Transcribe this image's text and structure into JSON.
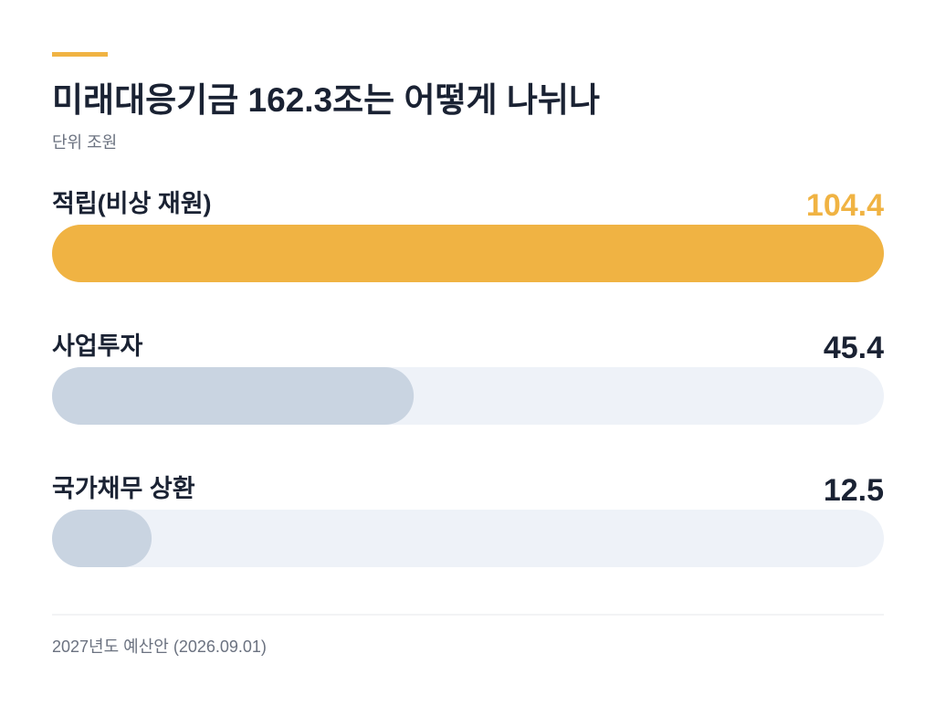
{
  "chart_data": {
    "type": "bar",
    "orientation": "horizontal",
    "title": "미래대응기금 162.3조는 어떻게 나뉘나",
    "subtitle": "단위 조원",
    "categories": [
      "적립(비상 재원)",
      "사업투자",
      "국가채무 상환"
    ],
    "values": [
      104.4,
      45.4,
      12.5
    ],
    "colors": [
      "#f0b343",
      "#c9d4e1",
      "#c9d4e1"
    ],
    "value_label_colors": [
      "#f0b343",
      "#1a2233",
      "#1a2233"
    ],
    "xlim": [
      0,
      104.4
    ],
    "footnote": "2027년도 예산안 (2026.09.01)"
  }
}
